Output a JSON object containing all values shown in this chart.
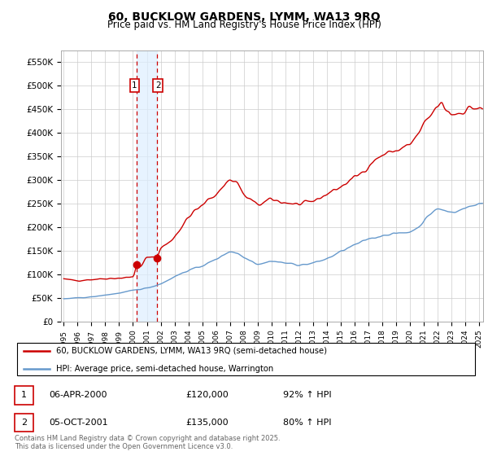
{
  "title": "60, BUCKLOW GARDENS, LYMM, WA13 9RQ",
  "subtitle": "Price paid vs. HM Land Registry's House Price Index (HPI)",
  "legend_line1": "60, BUCKLOW GARDENS, LYMM, WA13 9RQ (semi-detached house)",
  "legend_line2": "HPI: Average price, semi-detached house, Warrington",
  "footer": "Contains HM Land Registry data © Crown copyright and database right 2025.\nThis data is licensed under the Open Government Licence v3.0.",
  "transaction1_date": "06-APR-2000",
  "transaction1_price": "£120,000",
  "transaction1_hpi": "92% ↑ HPI",
  "transaction2_date": "05-OCT-2001",
  "transaction2_price": "£135,000",
  "transaction2_hpi": "80% ↑ HPI",
  "red_color": "#cc0000",
  "blue_color": "#6699cc",
  "shade_color": "#ddeeff",
  "ylim_min": 0,
  "ylim_max": 575000,
  "yticks": [
    0,
    50000,
    100000,
    150000,
    200000,
    250000,
    300000,
    350000,
    400000,
    450000,
    500000,
    550000
  ],
  "ytick_labels": [
    "£0",
    "£50K",
    "£100K",
    "£150K",
    "£200K",
    "£250K",
    "£300K",
    "£350K",
    "£400K",
    "£450K",
    "£500K",
    "£550K"
  ],
  "marker1_x": 2000.27,
  "marker1_y": 120000,
  "marker2_x": 2001.75,
  "marker2_y": 135000,
  "vline1_x": 2000.27,
  "vline2_x": 2001.75,
  "xmin": 1995.0,
  "xmax": 2025.3
}
